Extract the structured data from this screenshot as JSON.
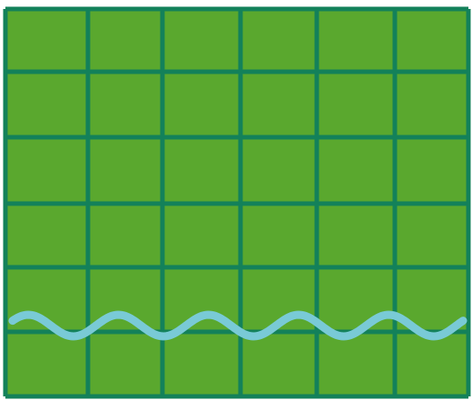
{
  "board": {
    "columns": 6,
    "rows": 6,
    "tile_color": "#5aa82e",
    "grid_line_color": "#13815a",
    "background_color": "#ffffff"
  },
  "water": {
    "color": "#79cad6",
    "wave_crests": 5
  }
}
